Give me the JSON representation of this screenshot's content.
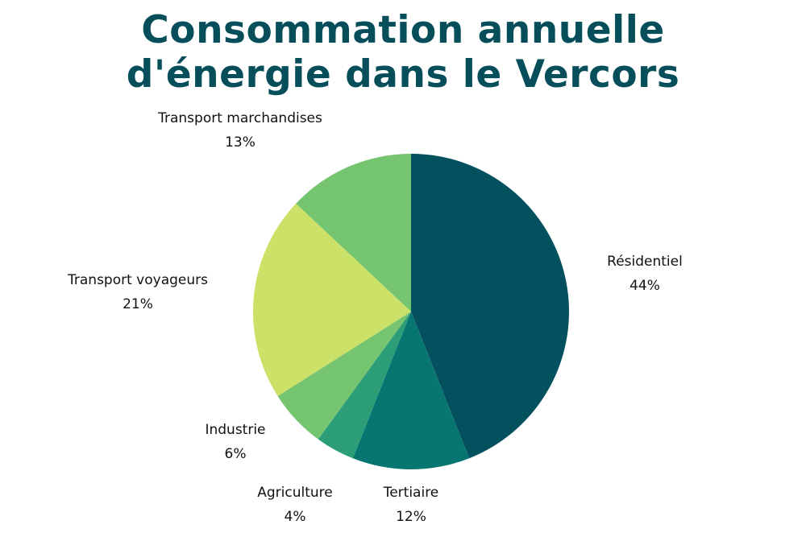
{
  "chart_data": {
    "type": "pie",
    "title_line1": "Consommation annuelle",
    "title_line2": "d'énergie dans le Vercors",
    "slices": [
      {
        "label": "Résidentiel",
        "value": 44,
        "value_label": "44%",
        "color": "#03505e"
      },
      {
        "label": "Tertiaire",
        "value": 12,
        "value_label": "12%",
        "color": "#077670"
      },
      {
        "label": "Agriculture",
        "value": 4,
        "value_label": "4%",
        "color": "#2b9d77"
      },
      {
        "label": "Industrie",
        "value": 6,
        "value_label": "6%",
        "color": "#75c470"
      },
      {
        "label": "Transport voyageurs",
        "value": 21,
        "value_label": "21%",
        "color": "#cbe168"
      },
      {
        "label": "Transport marchandises",
        "value": 13,
        "value_label": "13%",
        "color": "#75c470"
      }
    ],
    "start": "top",
    "direction": "clockwise"
  }
}
